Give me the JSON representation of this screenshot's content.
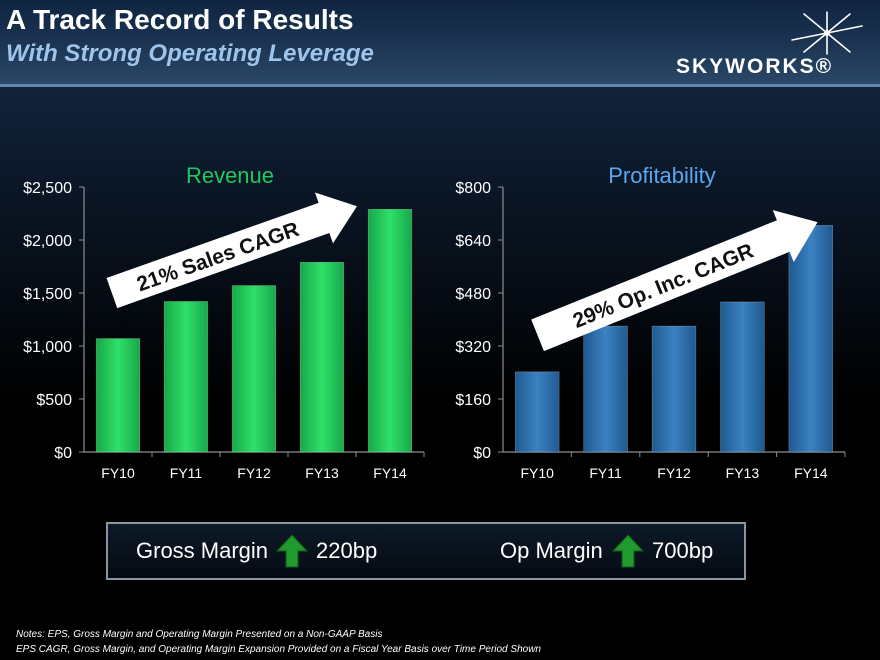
{
  "header": {
    "title": "A Track Record of Results",
    "subtitle": "With Strong Operating Leverage",
    "logo_text": "SKYWORKS®"
  },
  "chart_data": [
    {
      "type": "bar",
      "title": "Revenue",
      "categories": [
        "FY10",
        "FY11",
        "FY12",
        "FY13",
        "FY14"
      ],
      "values": [
        1070,
        1420,
        1570,
        1790,
        2290
      ],
      "ylim": [
        0,
        2500
      ],
      "yticks": [
        0,
        500,
        1000,
        1500,
        2000,
        2500
      ],
      "ytick_labels": [
        "$0",
        "$500",
        "$1,000",
        "$1,500",
        "$2,000",
        "$2,500"
      ],
      "annotation": "21% Sales CAGR",
      "title_color": "#22c55e",
      "bar_color": "#1fca58",
      "grid": false
    },
    {
      "type": "bar",
      "title": "Profitability",
      "categories": [
        "FY10",
        "FY11",
        "FY12",
        "FY13",
        "FY14"
      ],
      "values": [
        242,
        380,
        380,
        453,
        684
      ],
      "ylim": [
        0,
        800
      ],
      "yticks": [
        0,
        160,
        320,
        480,
        640,
        800
      ],
      "ytick_labels": [
        "$0",
        "$160",
        "$320",
        "$480",
        "$640",
        "$800"
      ],
      "annotation": "29% Op. Inc. CAGR",
      "title_color": "#5aa7ee",
      "bar_color": "#2d6ea8",
      "grid": false
    }
  ],
  "summary": {
    "gross_margin_label": "Gross Margin",
    "gross_margin_value": "220bp",
    "op_margin_label": "Op Margin",
    "op_margin_value": "700bp",
    "arrow_icon": "up-arrow-icon",
    "arrow_color": "#1f9a2c"
  },
  "notes": {
    "line1": "Notes: EPS, Gross Margin and Operating Margin Presented on a Non-GAAP Basis",
    "line2": "EPS CAGR, Gross Margin, and Operating Margin Expansion Provided on a Fiscal Year Basis over Time Period Shown"
  }
}
